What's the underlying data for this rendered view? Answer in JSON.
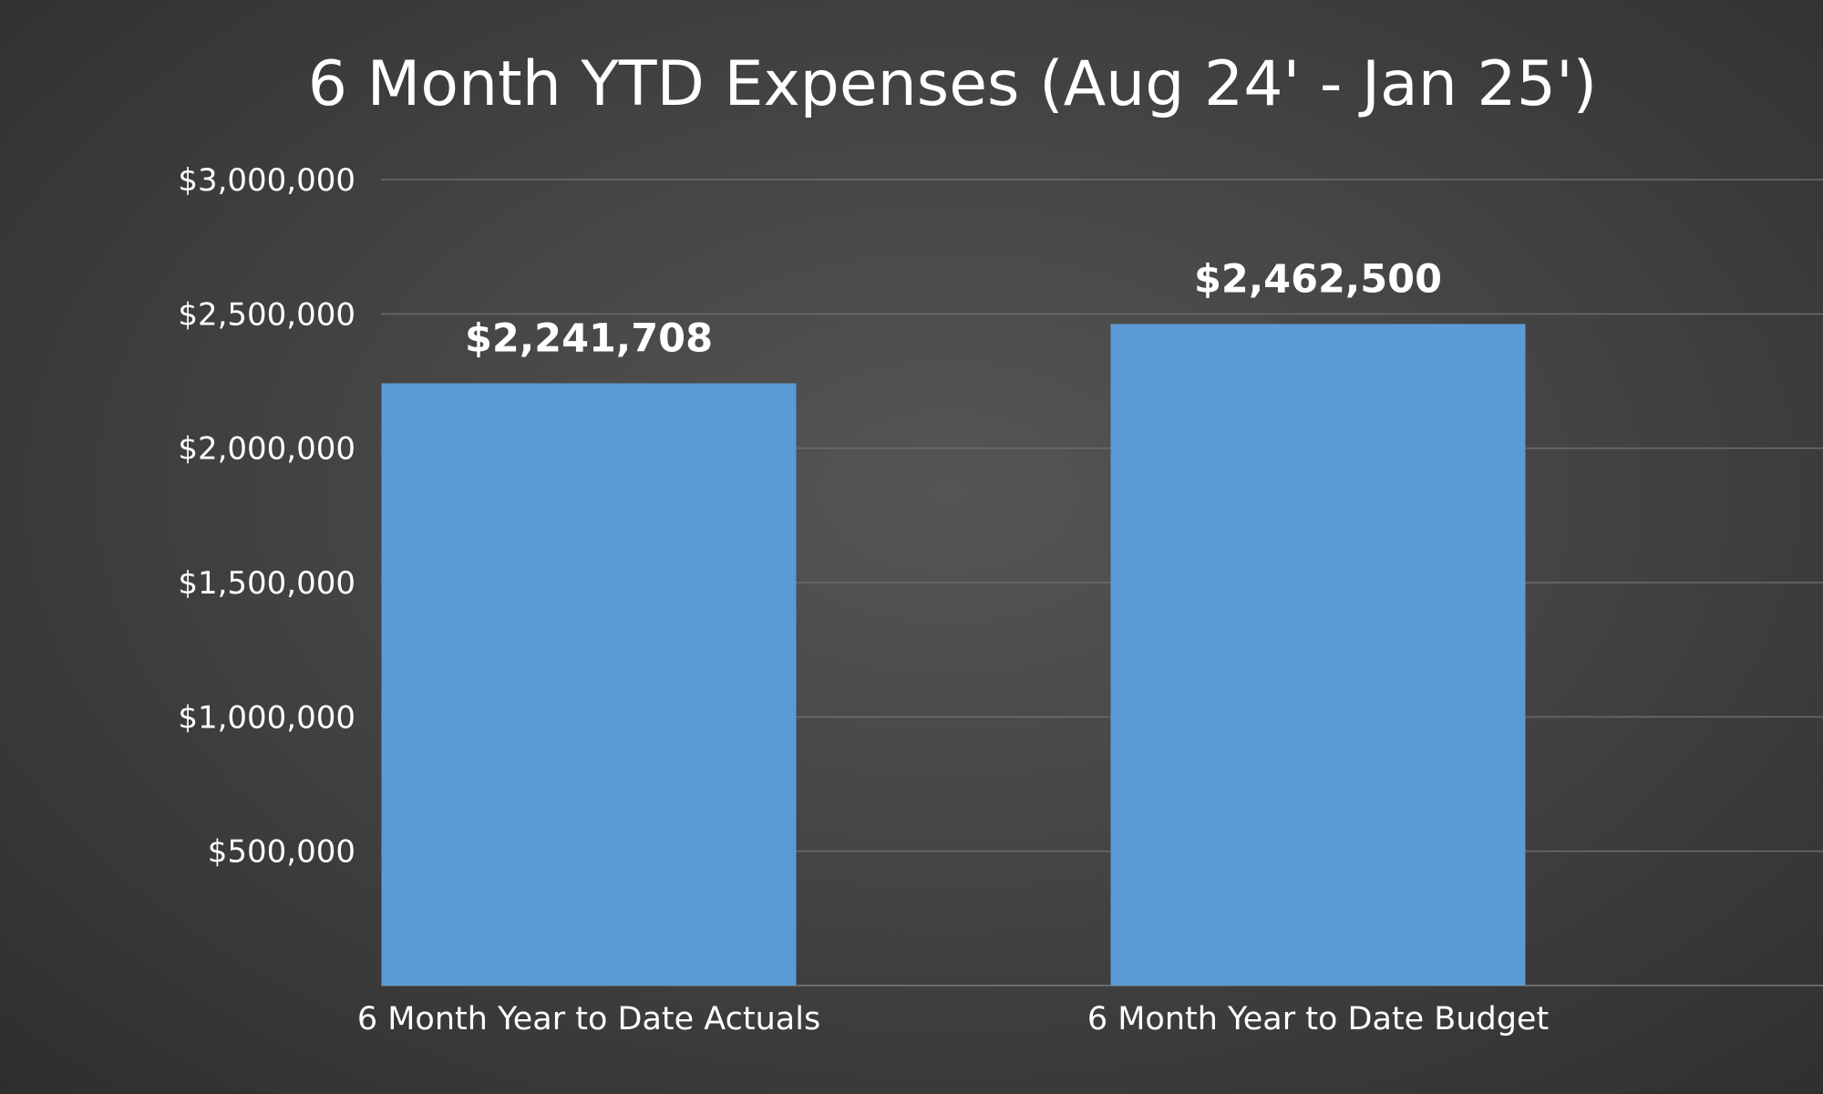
{
  "chart_data": {
    "type": "bar",
    "title": "6 Month YTD Expenses (Aug 24' - Jan 25')",
    "xlabel": "",
    "ylabel": "",
    "categories": [
      "6 Month Year to Date Actuals",
      "6 Month Year to Date Budget"
    ],
    "values": [
      2241708,
      2462500
    ],
    "data_labels": [
      "$2,241,708",
      "$2,462,500"
    ],
    "ylim": [
      0,
      3000000
    ],
    "y_ticks": [
      500000,
      1000000,
      1500000,
      2000000,
      2500000,
      3000000
    ],
    "y_tick_labels": [
      "$500,000",
      "$1,000,000",
      "$1,500,000",
      "$2,000,000",
      "$2,500,000",
      "$3,000,000"
    ],
    "grid": true,
    "legend": "none",
    "bar_color": "#5b9bd5",
    "background_color": "#3f3f3f",
    "text_color": "#ffffff"
  }
}
